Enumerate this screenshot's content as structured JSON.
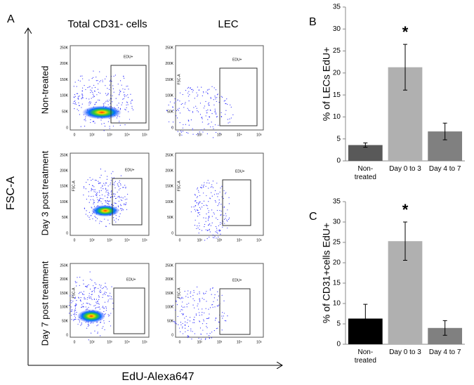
{
  "panel_a": {
    "label": "A",
    "columns": [
      "Total CD31- cells",
      "LEC"
    ],
    "rows": [
      "Non-treated",
      "Day 3 post treatment",
      "Day 7 post treatment"
    ],
    "y_axis_label": "FSC-A",
    "x_axis_label": "EdU-Alexa647",
    "gate_label": "EDU+",
    "plot_y_label": "FSC-A",
    "plot_yticks": [
      "250K",
      "200K",
      "150K",
      "100K",
      "50K",
      "0"
    ],
    "plot_xticks": [
      "0",
      "10²",
      "10³",
      "10⁴",
      "10⁵"
    ]
  },
  "chart_data": [
    {
      "type": "bar",
      "label": "B",
      "ylabel": "% of LECs EdU+",
      "categories": [
        "Non-treated",
        "Day 0 to 3",
        "Day 4 to 7"
      ],
      "values": [
        3.6,
        21.3,
        6.7
      ],
      "errors": [
        0.5,
        5.2,
        1.9
      ],
      "colors": [
        "#595959",
        "#b0b0b0",
        "#808080"
      ],
      "significance_marks": [
        null,
        "*",
        null
      ],
      "ylim": [
        0,
        35
      ],
      "yticks": [
        0,
        5,
        10,
        15,
        20,
        25,
        30,
        35
      ]
    },
    {
      "type": "bar",
      "label": "C",
      "ylabel": "% of CD31+cells EdU+",
      "categories": [
        "Non-treated",
        "Day 0 to 3",
        "Day 4 to 7"
      ],
      "values": [
        6.3,
        25.3,
        4.0
      ],
      "errors": [
        3.5,
        4.7,
        1.8
      ],
      "colors": [
        "#000000",
        "#b0b0b0",
        "#808080"
      ],
      "significance_marks": [
        null,
        "*",
        null
      ],
      "ylim": [
        0,
        35
      ],
      "yticks": [
        0,
        5,
        10,
        15,
        20,
        25,
        30,
        35
      ]
    }
  ]
}
